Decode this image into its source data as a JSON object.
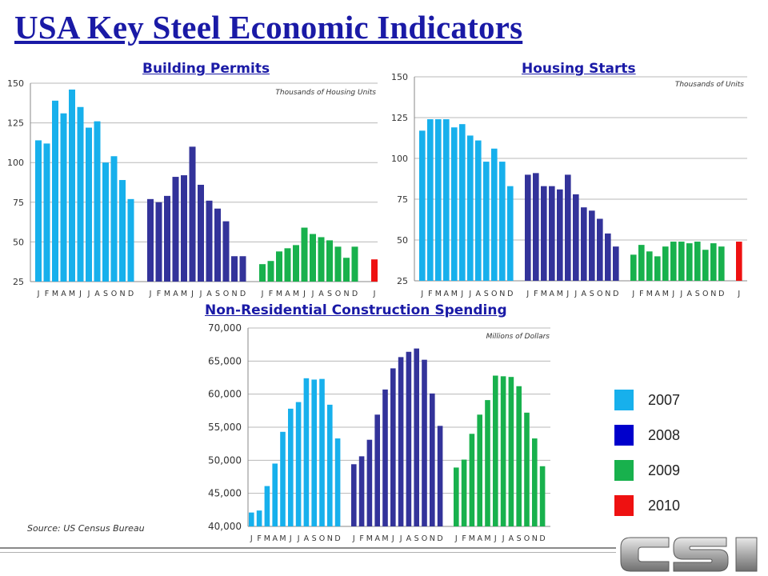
{
  "page": {
    "title": "USA Key Steel Economic Indicators",
    "source": "Source: US Census Bureau"
  },
  "colors": {
    "2007": "#17b0ec",
    "2008": "#33339a",
    "2009": "#18b14d",
    "2010": "#ee1111",
    "title": "#1a1aa6",
    "grid": "#b8b8b8"
  },
  "legend": [
    {
      "label": "2007",
      "color": "#17b0ec"
    },
    {
      "label": "2008",
      "color": "#0000cc"
    },
    {
      "label": "2009",
      "color": "#18b14d"
    },
    {
      "label": "2010",
      "color": "#ee1111"
    }
  ],
  "chart_data": [
    {
      "type": "bar",
      "title": "Building Permits",
      "unit_note": "Thousands of Housing Units",
      "ylim": [
        25,
        150
      ],
      "yticks": [
        "25",
        "50",
        "75",
        "100",
        "125",
        "150"
      ],
      "grid": true,
      "month_labels": [
        "J",
        "F",
        "M",
        "A",
        "M",
        "J",
        "J",
        "A",
        "S",
        "O",
        "N",
        "D"
      ],
      "series": [
        {
          "name": "2007",
          "values": [
            114,
            112,
            139,
            131,
            146,
            135,
            122,
            126,
            100,
            104,
            89,
            77
          ]
        },
        {
          "name": "2008",
          "values": [
            77,
            75,
            79,
            91,
            92,
            110,
            86,
            76,
            71,
            63,
            41,
            41
          ]
        },
        {
          "name": "2009",
          "values": [
            36,
            38,
            44,
            46,
            48,
            59,
            55,
            53,
            51,
            47,
            40,
            47
          ]
        },
        {
          "name": "2010",
          "values": [
            39
          ]
        }
      ]
    },
    {
      "type": "bar",
      "title": "Housing Starts",
      "unit_note": "Thousands of Units",
      "ylim": [
        25,
        150
      ],
      "yticks": [
        "25",
        "50",
        "75",
        "100",
        "125",
        "150"
      ],
      "grid": true,
      "month_labels": [
        "J",
        "F",
        "M",
        "A",
        "M",
        "J",
        "J",
        "A",
        "S",
        "O",
        "N",
        "D"
      ],
      "series": [
        {
          "name": "2007",
          "values": [
            117,
            124,
            124,
            124,
            119,
            121,
            114,
            111,
            98,
            106,
            98,
            83
          ]
        },
        {
          "name": "2008",
          "values": [
            90,
            91,
            83,
            83,
            81,
            90,
            78,
            70,
            68,
            63,
            54,
            46
          ]
        },
        {
          "name": "2009",
          "values": [
            41,
            47,
            43,
            40,
            46,
            49,
            49,
            48,
            49,
            44,
            48,
            46
          ]
        },
        {
          "name": "2010",
          "values": [
            49
          ]
        }
      ]
    },
    {
      "type": "bar",
      "title": "Non-Residential Construction Spending",
      "unit_note": "Millions of Dollars",
      "ylim": [
        40000,
        70000
      ],
      "yticks": [
        "40,000",
        "45,000",
        "50,000",
        "55,000",
        "60,000",
        "65,000",
        "70,000"
      ],
      "grid": true,
      "month_labels": [
        "J",
        "F",
        "M",
        "A",
        "M",
        "J",
        "J",
        "A",
        "S",
        "O",
        "N",
        "D"
      ],
      "series": [
        {
          "name": "2007",
          "values": [
            42100,
            42400,
            46100,
            49500,
            54300,
            57800,
            58800,
            62400,
            62200,
            62300,
            58400,
            53300
          ]
        },
        {
          "name": "2008",
          "values": [
            49400,
            50600,
            53100,
            56900,
            60700,
            63900,
            65600,
            66400,
            66900,
            65200,
            60100,
            55200
          ]
        },
        {
          "name": "2009",
          "values": [
            48900,
            50100,
            54000,
            56900,
            59100,
            62800,
            62700,
            62600,
            61200,
            57200,
            53300,
            49100
          ]
        }
      ]
    }
  ]
}
